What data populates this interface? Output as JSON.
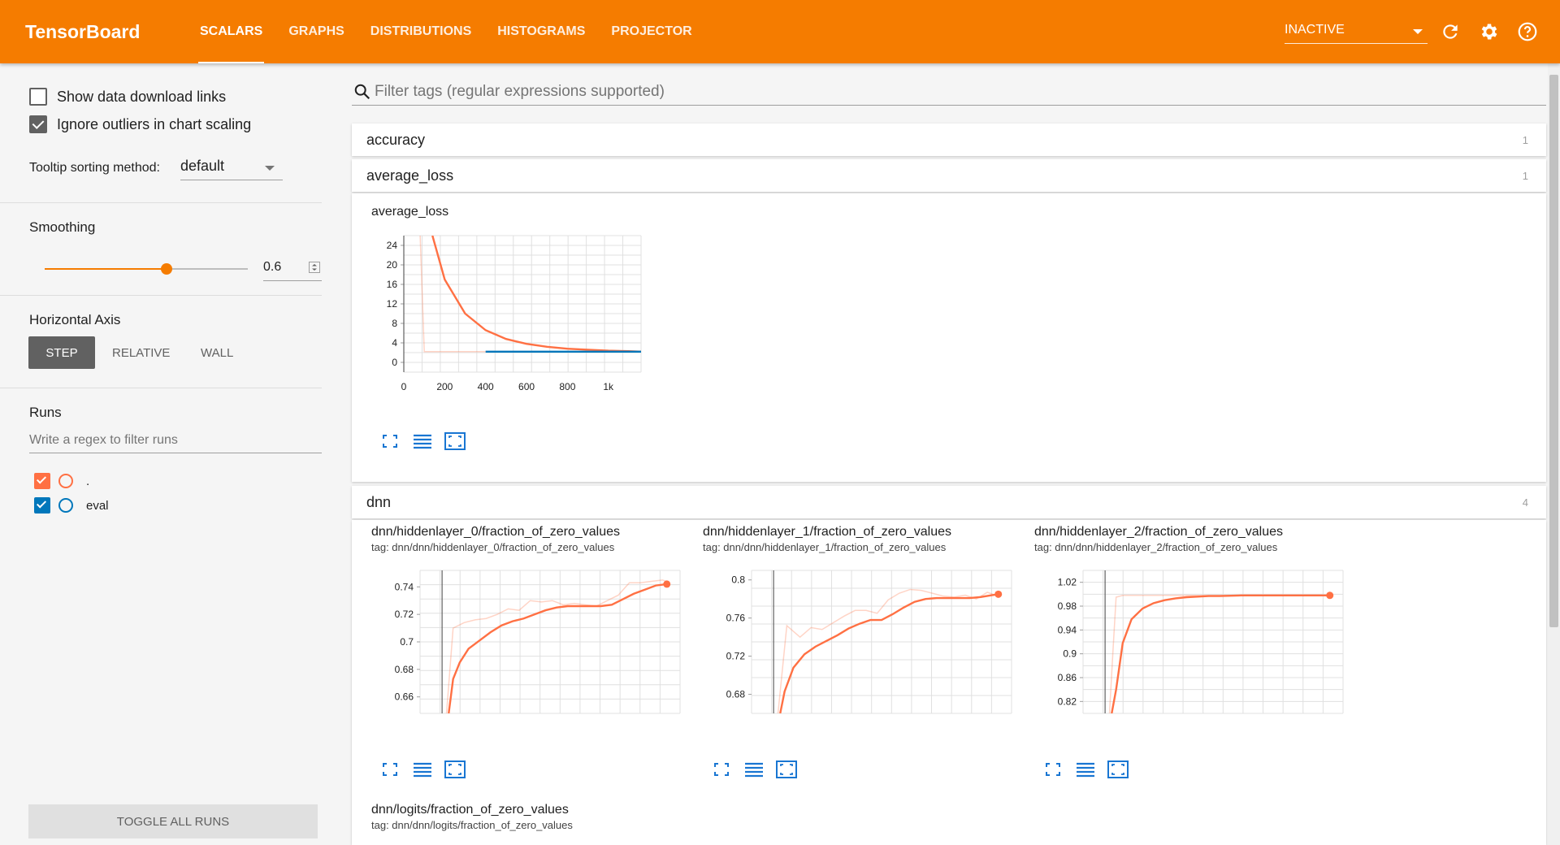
{
  "app": {
    "title": "TensorBoard",
    "tabs": [
      "SCALARS",
      "GRAPHS",
      "DISTRIBUTIONS",
      "HISTOGRAMS",
      "PROJECTOR"
    ],
    "status": "INACTIVE",
    "icons": [
      "refresh-icon",
      "settings-icon",
      "help-icon"
    ]
  },
  "sidebar": {
    "show_download": "Show data download links",
    "ignore_outliers": "Ignore outliers in chart scaling",
    "tooltip_label": "Tooltip sorting method:",
    "tooltip_value": "default",
    "smoothing_label": "Smoothing",
    "smoothing_value": "0.6",
    "smoothing_fraction": 0.6,
    "axis_label": "Horizontal Axis",
    "axis_options": [
      "STEP",
      "RELATIVE",
      "WALL"
    ],
    "runs_label": "Runs",
    "runs_placeholder": "Write a regex to filter runs",
    "runs": [
      {
        "name": ".",
        "color": "#ff7043"
      },
      {
        "name": "eval",
        "color": "#0077bb"
      }
    ],
    "toggle_all": "TOGGLE ALL RUNS"
  },
  "main": {
    "filter_placeholder": "Filter tags (regular expressions supported)",
    "groups": [
      {
        "name": "accuracy",
        "count": "1"
      },
      {
        "name": "average_loss",
        "count": "1"
      },
      {
        "name": "dnn",
        "count": "4"
      }
    ],
    "avg_card_title": "average_loss",
    "dnn_cards": [
      {
        "title": "dnn/hiddenlayer_0/fraction_of_zero_values",
        "tag": "tag: dnn/dnn/hiddenlayer_0/fraction_of_zero_values"
      },
      {
        "title": "dnn/hiddenlayer_1/fraction_of_zero_values",
        "tag": "tag: dnn/dnn/hiddenlayer_1/fraction_of_zero_values"
      },
      {
        "title": "dnn/hiddenlayer_2/fraction_of_zero_values",
        "tag": "tag: dnn/dnn/hiddenlayer_2/fraction_of_zero_values"
      },
      {
        "title": "dnn/logits/fraction_of_zero_values",
        "tag": "tag: dnn/dnn/logits/fraction_of_zero_values"
      }
    ]
  },
  "chart_data": [
    {
      "type": "line",
      "title": "average_loss",
      "xlim": [
        0,
        1160
      ],
      "ylim": [
        -2,
        26
      ],
      "xticks": [
        0,
        200,
        400,
        600,
        800,
        1000
      ],
      "xtick_labels": [
        "0",
        "200",
        "400",
        "600",
        "800",
        "1k"
      ],
      "yticks": [
        0,
        4,
        8,
        12,
        16,
        20,
        24
      ],
      "yticks_labels": [
        "0",
        "4",
        "8",
        "12",
        "16",
        "20",
        "24"
      ],
      "series": [
        {
          "name": ".",
          "color": "#ff7043",
          "role": "raw",
          "x": [
            80,
            100,
            200,
            300,
            400,
            500,
            600,
            700,
            800,
            900,
            1000,
            1100,
            1160
          ],
          "y": [
            26,
            2.2,
            2.2,
            2.2,
            2.2,
            2.2,
            2.2,
            2.2,
            2.2,
            2.2,
            2.2,
            2.2,
            2.2
          ]
        },
        {
          "name": ".",
          "color": "#ff7043",
          "role": "smoothed",
          "x": [
            140,
            200,
            300,
            400,
            500,
            600,
            700,
            800,
            900,
            1000,
            1100,
            1160
          ],
          "y": [
            26,
            17,
            10,
            6.6,
            4.8,
            3.8,
            3.2,
            2.8,
            2.6,
            2.4,
            2.3,
            2.2
          ]
        },
        {
          "name": "eval",
          "color": "#0077bb",
          "role": "smoothed",
          "x": [
            400,
            1160
          ],
          "y": [
            2.2,
            2.2
          ]
        }
      ]
    },
    {
      "type": "line",
      "title": "dnn/hiddenlayer_0/fraction_of_zero_values",
      "xlim": [
        -20,
        1160
      ],
      "ylim": [
        0.648,
        0.752
      ],
      "yticks": [
        0.66,
        0.68,
        0.7,
        0.72,
        0.74
      ],
      "yticks_labels": [
        "0.66",
        "0.68",
        "0.7",
        "0.72",
        "0.74"
      ],
      "series": [
        {
          "name": ".",
          "color": "#ff7043",
          "role": "raw",
          "x": [
            100,
            130,
            180,
            230,
            280,
            330,
            380,
            430,
            480,
            530,
            580,
            630,
            680,
            730,
            780,
            830,
            880,
            930,
            980,
            1030,
            1080,
            1100
          ],
          "y": [
            0.648,
            0.71,
            0.714,
            0.716,
            0.717,
            0.72,
            0.724,
            0.723,
            0.73,
            0.729,
            0.73,
            0.727,
            0.728,
            0.727,
            0.726,
            0.73,
            0.734,
            0.743,
            0.743,
            0.744,
            0.745,
            0.744
          ]
        },
        {
          "name": ".",
          "color": "#ff7043",
          "role": "smoothed",
          "x": [
            110,
            130,
            160,
            200,
            250,
            300,
            350,
            400,
            450,
            500,
            550,
            600,
            650,
            700,
            750,
            800,
            850,
            900,
            950,
            1000,
            1050,
            1100
          ],
          "y": [
            0.648,
            0.673,
            0.685,
            0.695,
            0.701,
            0.707,
            0.712,
            0.715,
            0.717,
            0.72,
            0.723,
            0.725,
            0.726,
            0.726,
            0.726,
            0.726,
            0.727,
            0.731,
            0.735,
            0.738,
            0.741,
            0.742
          ]
        }
      ]
    },
    {
      "type": "line",
      "title": "dnn/hiddenlayer_1/fraction_of_zero_values",
      "xlim": [
        -20,
        1160
      ],
      "ylim": [
        0.66,
        0.81
      ],
      "yticks": [
        0.68,
        0.72,
        0.76,
        0.8
      ],
      "yticks_labels": [
        "0.68",
        "0.72",
        "0.76",
        "0.8"
      ],
      "series": [
        {
          "name": ".",
          "color": "#ff7043",
          "role": "raw",
          "x": [
            100,
            140,
            200,
            250,
            300,
            350,
            400,
            450,
            500,
            550,
            600,
            650,
            700,
            750,
            800,
            850,
            900,
            950,
            1000,
            1050,
            1100
          ],
          "y": [
            0.66,
            0.752,
            0.74,
            0.75,
            0.748,
            0.755,
            0.762,
            0.768,
            0.768,
            0.765,
            0.779,
            0.786,
            0.79,
            0.789,
            0.786,
            0.783,
            0.782,
            0.784,
            0.78,
            0.787,
            0.783
          ]
        },
        {
          "name": ".",
          "color": "#ff7043",
          "role": "smoothed",
          "x": [
            110,
            130,
            170,
            220,
            270,
            320,
            370,
            420,
            470,
            520,
            570,
            620,
            670,
            720,
            770,
            820,
            870,
            920,
            970,
            1020,
            1070,
            1100
          ],
          "y": [
            0.66,
            0.683,
            0.708,
            0.722,
            0.73,
            0.736,
            0.742,
            0.749,
            0.754,
            0.758,
            0.758,
            0.764,
            0.771,
            0.777,
            0.78,
            0.781,
            0.781,
            0.781,
            0.781,
            0.782,
            0.784,
            0.785
          ]
        }
      ]
    },
    {
      "type": "line",
      "title": "dnn/hiddenlayer_2/fraction_of_zero_values",
      "xlim": [
        -20,
        1160
      ],
      "ylim": [
        0.8,
        1.04
      ],
      "yticks": [
        0.82,
        0.86,
        0.9,
        0.94,
        0.98,
        1.02
      ],
      "yticks_labels": [
        "0.82",
        "0.86",
        "0.9",
        "0.94",
        "0.98",
        "1.02"
      ],
      "series": [
        {
          "name": ".",
          "color": "#ff7043",
          "role": "raw",
          "x": [
            100,
            115,
            130,
            160,
            1100
          ],
          "y": [
            0.8,
            0.9,
            0.995,
            0.998,
            0.998
          ]
        },
        {
          "name": ".",
          "color": "#ff7043",
          "role": "smoothed",
          "x": [
            110,
            130,
            160,
            200,
            250,
            300,
            350,
            400,
            450,
            500,
            550,
            600,
            700,
            800,
            900,
            1000,
            1100
          ],
          "y": [
            0.8,
            0.84,
            0.918,
            0.958,
            0.976,
            0.985,
            0.99,
            0.993,
            0.995,
            0.996,
            0.997,
            0.997,
            0.998,
            0.998,
            0.998,
            0.998,
            0.998
          ]
        }
      ]
    }
  ]
}
